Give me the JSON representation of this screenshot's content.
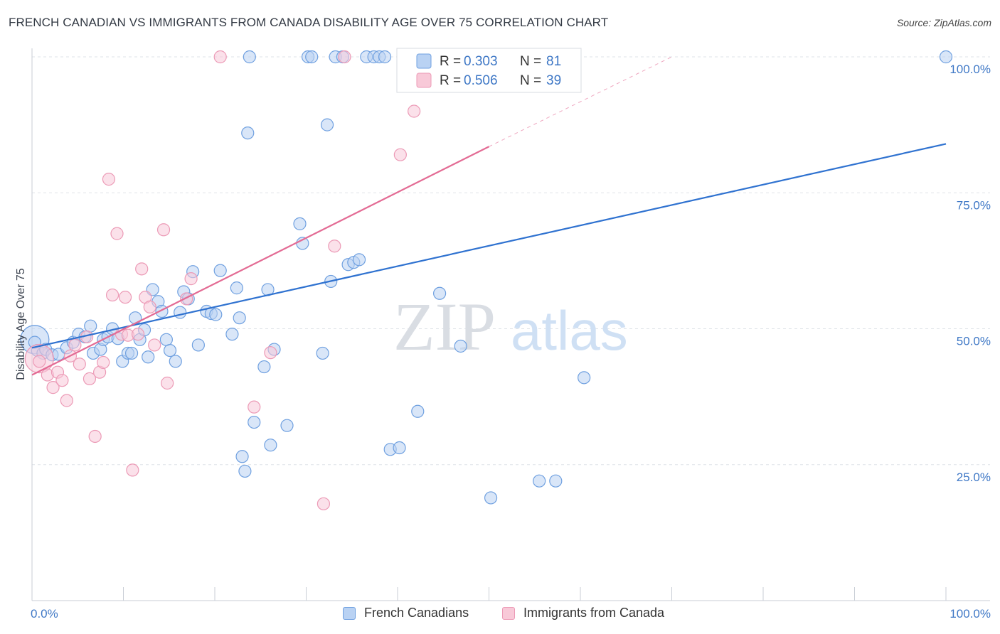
{
  "title": "FRENCH CANADIAN VS IMMIGRANTS FROM CANADA DISABILITY AGE OVER 75 CORRELATION CHART",
  "source": "Source: ZipAtlas.com",
  "watermark": {
    "zip": "ZIP",
    "atlas": "atlas"
  },
  "chart_data": {
    "type": "scatter",
    "title": "FRENCH CANADIAN VS IMMIGRANTS FROM CANADA DISABILITY AGE OVER 75 CORRELATION CHART",
    "xlabel": "",
    "ylabel": "Disability Age Over 75",
    "xlim": [
      0,
      100
    ],
    "ylim": [
      0,
      100
    ],
    "x_tick_labels": [
      "0.0%",
      "100.0%"
    ],
    "y_ticks": [
      25,
      50,
      75,
      100
    ],
    "y_tick_labels": [
      "25.0%",
      "50.0%",
      "75.0%",
      "100.0%"
    ],
    "grid": true,
    "legend": [
      {
        "r_label": "R =",
        "r_value": "0.303",
        "n_label": "N =",
        "n_value": "81"
      },
      {
        "r_label": "R =",
        "r_value": "0.506",
        "n_label": "N =",
        "n_value": "39"
      }
    ],
    "series": [
      {
        "name": "French Canadians",
        "color": "#6fa0e0",
        "fill": "#b9d2f3",
        "line_color": "#2f72d0",
        "trend": {
          "x0": 0,
          "y0": 46.5,
          "x1": 100,
          "y1": 84
        },
        "points": [
          [
            0.3,
            47.5
          ],
          [
            0.6,
            46
          ],
          [
            1.2,
            45.5
          ],
          [
            1.5,
            46.2
          ],
          [
            2.2,
            45.2
          ],
          [
            2.9,
            45.3
          ],
          [
            3.8,
            46.5
          ],
          [
            4.5,
            47.5
          ],
          [
            5.1,
            49
          ],
          [
            5.8,
            48.5
          ],
          [
            6.4,
            50.5
          ],
          [
            6.7,
            45.5
          ],
          [
            7.5,
            46.2
          ],
          [
            7.8,
            48
          ],
          [
            8.3,
            48.5
          ],
          [
            8.8,
            50
          ],
          [
            9.4,
            48.2
          ],
          [
            9.9,
            44
          ],
          [
            10.5,
            45.5
          ],
          [
            10.9,
            45.5
          ],
          [
            11.3,
            52
          ],
          [
            11.8,
            48
          ],
          [
            12.3,
            49.8
          ],
          [
            12.7,
            44.8
          ],
          [
            13.2,
            57.2
          ],
          [
            13.8,
            55
          ],
          [
            14.2,
            53.2
          ],
          [
            14.7,
            48
          ],
          [
            15.1,
            46
          ],
          [
            15.7,
            44
          ],
          [
            16.2,
            53
          ],
          [
            16.6,
            56.8
          ],
          [
            17.1,
            55.5
          ],
          [
            17.6,
            60.5
          ],
          [
            18.2,
            47
          ],
          [
            19.1,
            53.2
          ],
          [
            19.6,
            52.8
          ],
          [
            20.1,
            52.6
          ],
          [
            20.6,
            60.7
          ],
          [
            21.9,
            49
          ],
          [
            22.4,
            57.5
          ],
          [
            22.7,
            52
          ],
          [
            23.0,
            26.5
          ],
          [
            23.3,
            23.8
          ],
          [
            23.6,
            86
          ],
          [
            23.8,
            100
          ],
          [
            24.3,
            32.8
          ],
          [
            25.4,
            43
          ],
          [
            25.8,
            57.2
          ],
          [
            26.1,
            28.6
          ],
          [
            26.5,
            46.2
          ],
          [
            27.9,
            32.2
          ],
          [
            29.3,
            69.3
          ],
          [
            29.6,
            65.7
          ],
          [
            30.2,
            100
          ],
          [
            30.6,
            100
          ],
          [
            31.8,
            45.5
          ],
          [
            32.3,
            87.5
          ],
          [
            32.7,
            58.7
          ],
          [
            33.2,
            100
          ],
          [
            34.0,
            100
          ],
          [
            34.6,
            61.8
          ],
          [
            35.2,
            62.2
          ],
          [
            35.8,
            62.7
          ],
          [
            36.6,
            100
          ],
          [
            37.4,
            100
          ],
          [
            38.0,
            100
          ],
          [
            38.6,
            100
          ],
          [
            39.2,
            27.8
          ],
          [
            40.2,
            28.1
          ],
          [
            42.2,
            34.8
          ],
          [
            44.6,
            56.5
          ],
          [
            46.9,
            46.8
          ],
          [
            50.2,
            18.9
          ],
          [
            55.5,
            22
          ],
          [
            57.3,
            22
          ],
          [
            60.4,
            41
          ],
          [
            100,
            100
          ]
        ],
        "big_point": [
          0.3,
          48
        ]
      },
      {
        "name": "Immigrants from Canada",
        "color": "#ec9ab6",
        "fill": "#f8c9d8",
        "line_color": "#e36b94",
        "trend": {
          "x0": 0,
          "y0": 41.5,
          "x1": 50,
          "y1": 83.5
        },
        "trend_dashed": {
          "x0": 50,
          "y0": 83.5,
          "x1": 70,
          "y1": 100
        },
        "points": [
          [
            0.8,
            44
          ],
          [
            1.7,
            41.5
          ],
          [
            2.3,
            39.2
          ],
          [
            2.8,
            42
          ],
          [
            3.3,
            40.5
          ],
          [
            3.8,
            36.8
          ],
          [
            4.2,
            45
          ],
          [
            4.7,
            47
          ],
          [
            5.2,
            43.5
          ],
          [
            6.0,
            48.5
          ],
          [
            6.3,
            40.8
          ],
          [
            6.9,
            30.2
          ],
          [
            7.4,
            42
          ],
          [
            7.8,
            43.8
          ],
          [
            8.4,
            77.5
          ],
          [
            8.8,
            56.2
          ],
          [
            9.3,
            67.5
          ],
          [
            9.8,
            49
          ],
          [
            10.2,
            55.8
          ],
          [
            10.5,
            48.8
          ],
          [
            11.0,
            24
          ],
          [
            11.6,
            49
          ],
          [
            12.0,
            61
          ],
          [
            12.4,
            55.8
          ],
          [
            12.9,
            54
          ],
          [
            13.4,
            47
          ],
          [
            14.4,
            68.2
          ],
          [
            14.8,
            40
          ],
          [
            16.9,
            55.5
          ],
          [
            17.4,
            59.2
          ],
          [
            20.6,
            100
          ],
          [
            24.3,
            35.6
          ],
          [
            26.1,
            45.6
          ],
          [
            31.9,
            17.8
          ],
          [
            33.1,
            65.2
          ],
          [
            34.2,
            100
          ],
          [
            40.3,
            82
          ],
          [
            41.8,
            90
          ]
        ],
        "big_point": [
          0.8,
          44.5
        ]
      }
    ]
  }
}
